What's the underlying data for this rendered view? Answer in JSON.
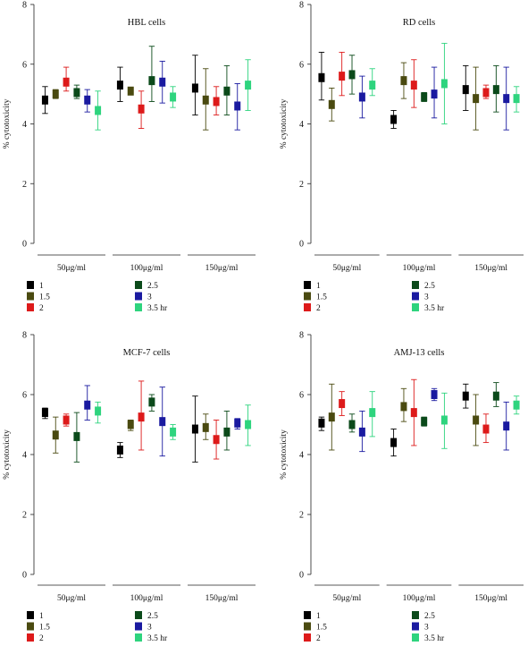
{
  "chart_data": [
    {
      "type": "bar",
      "title": "HBL cells",
      "ylabel": "% cytotoxicity",
      "ylim": [
        0,
        8
      ],
      "yticks": [
        0,
        2,
        4,
        6,
        8
      ],
      "categories": [
        "50μg/ml",
        "100μg/ml",
        "150μg/ml"
      ],
      "series": [
        {
          "name": "1",
          "color": "#000000",
          "values": [
            4.8,
            5.3,
            5.2
          ],
          "error_low": [
            4.35,
            4.75,
            4.3
          ],
          "error_high": [
            5.25,
            5.9,
            6.3
          ]
        },
        {
          "name": "1.5",
          "color": "#4a4a10",
          "values": [
            5.0,
            5.1,
            4.8
          ],
          "error_low": [
            4.85,
            5.0,
            3.8
          ],
          "error_high": [
            5.15,
            5.2,
            5.85
          ]
        },
        {
          "name": "2",
          "color": "#dd1a1a",
          "values": [
            5.4,
            4.5,
            4.75
          ],
          "error_low": [
            5.1,
            3.85,
            4.3
          ],
          "error_high": [
            5.9,
            5.1,
            5.25
          ]
        },
        {
          "name": "2.5",
          "color": "#0b4a1a",
          "values": [
            5.05,
            5.45,
            5.1
          ],
          "error_low": [
            4.85,
            4.75,
            4.3
          ],
          "error_high": [
            5.3,
            6.6,
            5.95
          ]
        },
        {
          "name": "3",
          "color": "#1a1aa0",
          "values": [
            4.8,
            5.4,
            4.6
          ],
          "error_low": [
            4.4,
            4.7,
            3.8
          ],
          "error_high": [
            5.15,
            6.1,
            5.35
          ]
        },
        {
          "name": "3.5 hr",
          "color": "#2ed47e",
          "values": [
            4.45,
            4.9,
            5.3
          ],
          "error_low": [
            3.8,
            4.55,
            4.45
          ],
          "error_high": [
            5.1,
            5.25,
            6.15
          ]
        }
      ]
    },
    {
      "type": "bar",
      "title": "RD cells",
      "ylabel": "% cytotoxicity",
      "ylim": [
        0,
        8
      ],
      "yticks": [
        0,
        2,
        4,
        6,
        8
      ],
      "categories": [
        "50μg/ml",
        "100μg/ml",
        "150μg/ml"
      ],
      "series": [
        {
          "name": "1",
          "color": "#000000",
          "values": [
            5.55,
            4.15,
            5.15
          ],
          "error_low": [
            4.8,
            3.85,
            4.45
          ],
          "error_high": [
            6.4,
            4.45,
            5.95
          ]
        },
        {
          "name": "1.5",
          "color": "#4a4a10",
          "values": [
            4.65,
            5.45,
            4.85
          ],
          "error_low": [
            4.1,
            4.85,
            3.8
          ],
          "error_high": [
            5.2,
            6.05,
            5.9
          ]
        },
        {
          "name": "2",
          "color": "#dd1a1a",
          "values": [
            5.6,
            5.3,
            5.05
          ],
          "error_low": [
            4.95,
            4.55,
            4.85
          ],
          "error_high": [
            6.4,
            6.15,
            5.3
          ]
        },
        {
          "name": "2.5",
          "color": "#0b4a1a",
          "values": [
            5.65,
            4.9,
            5.15
          ],
          "error_low": [
            5.0,
            4.75,
            4.4
          ],
          "error_high": [
            6.3,
            5.05,
            5.95
          ]
        },
        {
          "name": "3",
          "color": "#1a1aa0",
          "values": [
            4.9,
            5.0,
            4.85
          ],
          "error_low": [
            4.2,
            4.2,
            3.8
          ],
          "error_high": [
            5.6,
            5.9,
            5.9
          ]
        },
        {
          "name": "3.5 hr",
          "color": "#2ed47e",
          "values": [
            5.3,
            5.35,
            4.85
          ],
          "error_low": [
            4.95,
            4.0,
            4.4
          ],
          "error_high": [
            5.85,
            6.7,
            5.25
          ]
        }
      ]
    },
    {
      "type": "bar",
      "title": "MCF-7 cells",
      "ylabel": "% cytotoxicity",
      "ylim": [
        0,
        8
      ],
      "yticks": [
        0,
        2,
        4,
        6,
        8
      ],
      "categories": [
        "50μg/ml",
        "100μg/ml",
        "150μg/ml"
      ],
      "series": [
        {
          "name": "1",
          "color": "#000000",
          "values": [
            5.4,
            4.15,
            4.85
          ],
          "error_low": [
            5.2,
            3.9,
            3.75
          ],
          "error_high": [
            5.55,
            4.4,
            5.95
          ]
        },
        {
          "name": "1.5",
          "color": "#4a4a10",
          "values": [
            4.65,
            5.0,
            4.9
          ],
          "error_low": [
            4.05,
            4.8,
            4.5
          ],
          "error_high": [
            5.25,
            5.15,
            5.35
          ]
        },
        {
          "name": "2",
          "color": "#dd1a1a",
          "values": [
            5.15,
            5.25,
            4.5
          ],
          "error_low": [
            4.95,
            4.15,
            3.85
          ],
          "error_high": [
            5.35,
            6.45,
            5.15
          ]
        },
        {
          "name": "2.5",
          "color": "#0b4a1a",
          "values": [
            4.6,
            5.75,
            4.75
          ],
          "error_low": [
            3.75,
            5.45,
            4.15
          ],
          "error_high": [
            5.4,
            6.0,
            5.45
          ]
        },
        {
          "name": "3",
          "color": "#1a1aa0",
          "values": [
            5.65,
            5.1,
            5.05
          ],
          "error_low": [
            5.15,
            3.95,
            4.85
          ],
          "error_high": [
            6.3,
            6.25,
            5.2
          ]
        },
        {
          "name": "3.5 hr",
          "color": "#2ed47e",
          "values": [
            5.45,
            4.75,
            5.0
          ],
          "error_low": [
            5.05,
            4.5,
            4.3
          ],
          "error_high": [
            5.75,
            5.0,
            5.65
          ]
        }
      ]
    },
    {
      "type": "bar",
      "title": "AMJ-13 cells",
      "ylabel": "% cytotoxicity",
      "ylim": [
        0,
        8
      ],
      "yticks": [
        0,
        2,
        4,
        6,
        8
      ],
      "categories": [
        "50μg/ml",
        "100μg/ml",
        "150μg/ml"
      ],
      "series": [
        {
          "name": "1",
          "color": "#000000",
          "values": [
            5.05,
            4.4,
            5.95
          ],
          "error_low": [
            4.8,
            3.95,
            5.55
          ],
          "error_high": [
            5.25,
            4.85,
            6.35
          ]
        },
        {
          "name": "1.5",
          "color": "#4a4a10",
          "values": [
            5.25,
            5.6,
            5.15
          ],
          "error_low": [
            4.15,
            5.1,
            4.3
          ],
          "error_high": [
            6.35,
            6.2,
            6.0
          ]
        },
        {
          "name": "2",
          "color": "#dd1a1a",
          "values": [
            5.7,
            5.4,
            4.85
          ],
          "error_low": [
            5.3,
            4.3,
            4.4
          ],
          "error_high": [
            6.1,
            6.5,
            5.35
          ]
        },
        {
          "name": "2.5",
          "color": "#0b4a1a",
          "values": [
            5.0,
            5.1,
            5.95
          ],
          "error_low": [
            4.75,
            4.95,
            5.6
          ],
          "error_high": [
            5.35,
            5.25,
            6.4
          ]
        },
        {
          "name": "3",
          "color": "#1a1aa0",
          "values": [
            4.75,
            6.0,
            4.95
          ],
          "error_low": [
            4.1,
            5.8,
            4.15
          ],
          "error_high": [
            5.45,
            6.2,
            5.75
          ]
        },
        {
          "name": "3.5 hr",
          "color": "#2ed47e",
          "values": [
            5.4,
            5.15,
            5.65
          ],
          "error_low": [
            4.6,
            4.2,
            5.35
          ],
          "error_high": [
            6.1,
            6.05,
            5.95
          ]
        }
      ]
    }
  ]
}
